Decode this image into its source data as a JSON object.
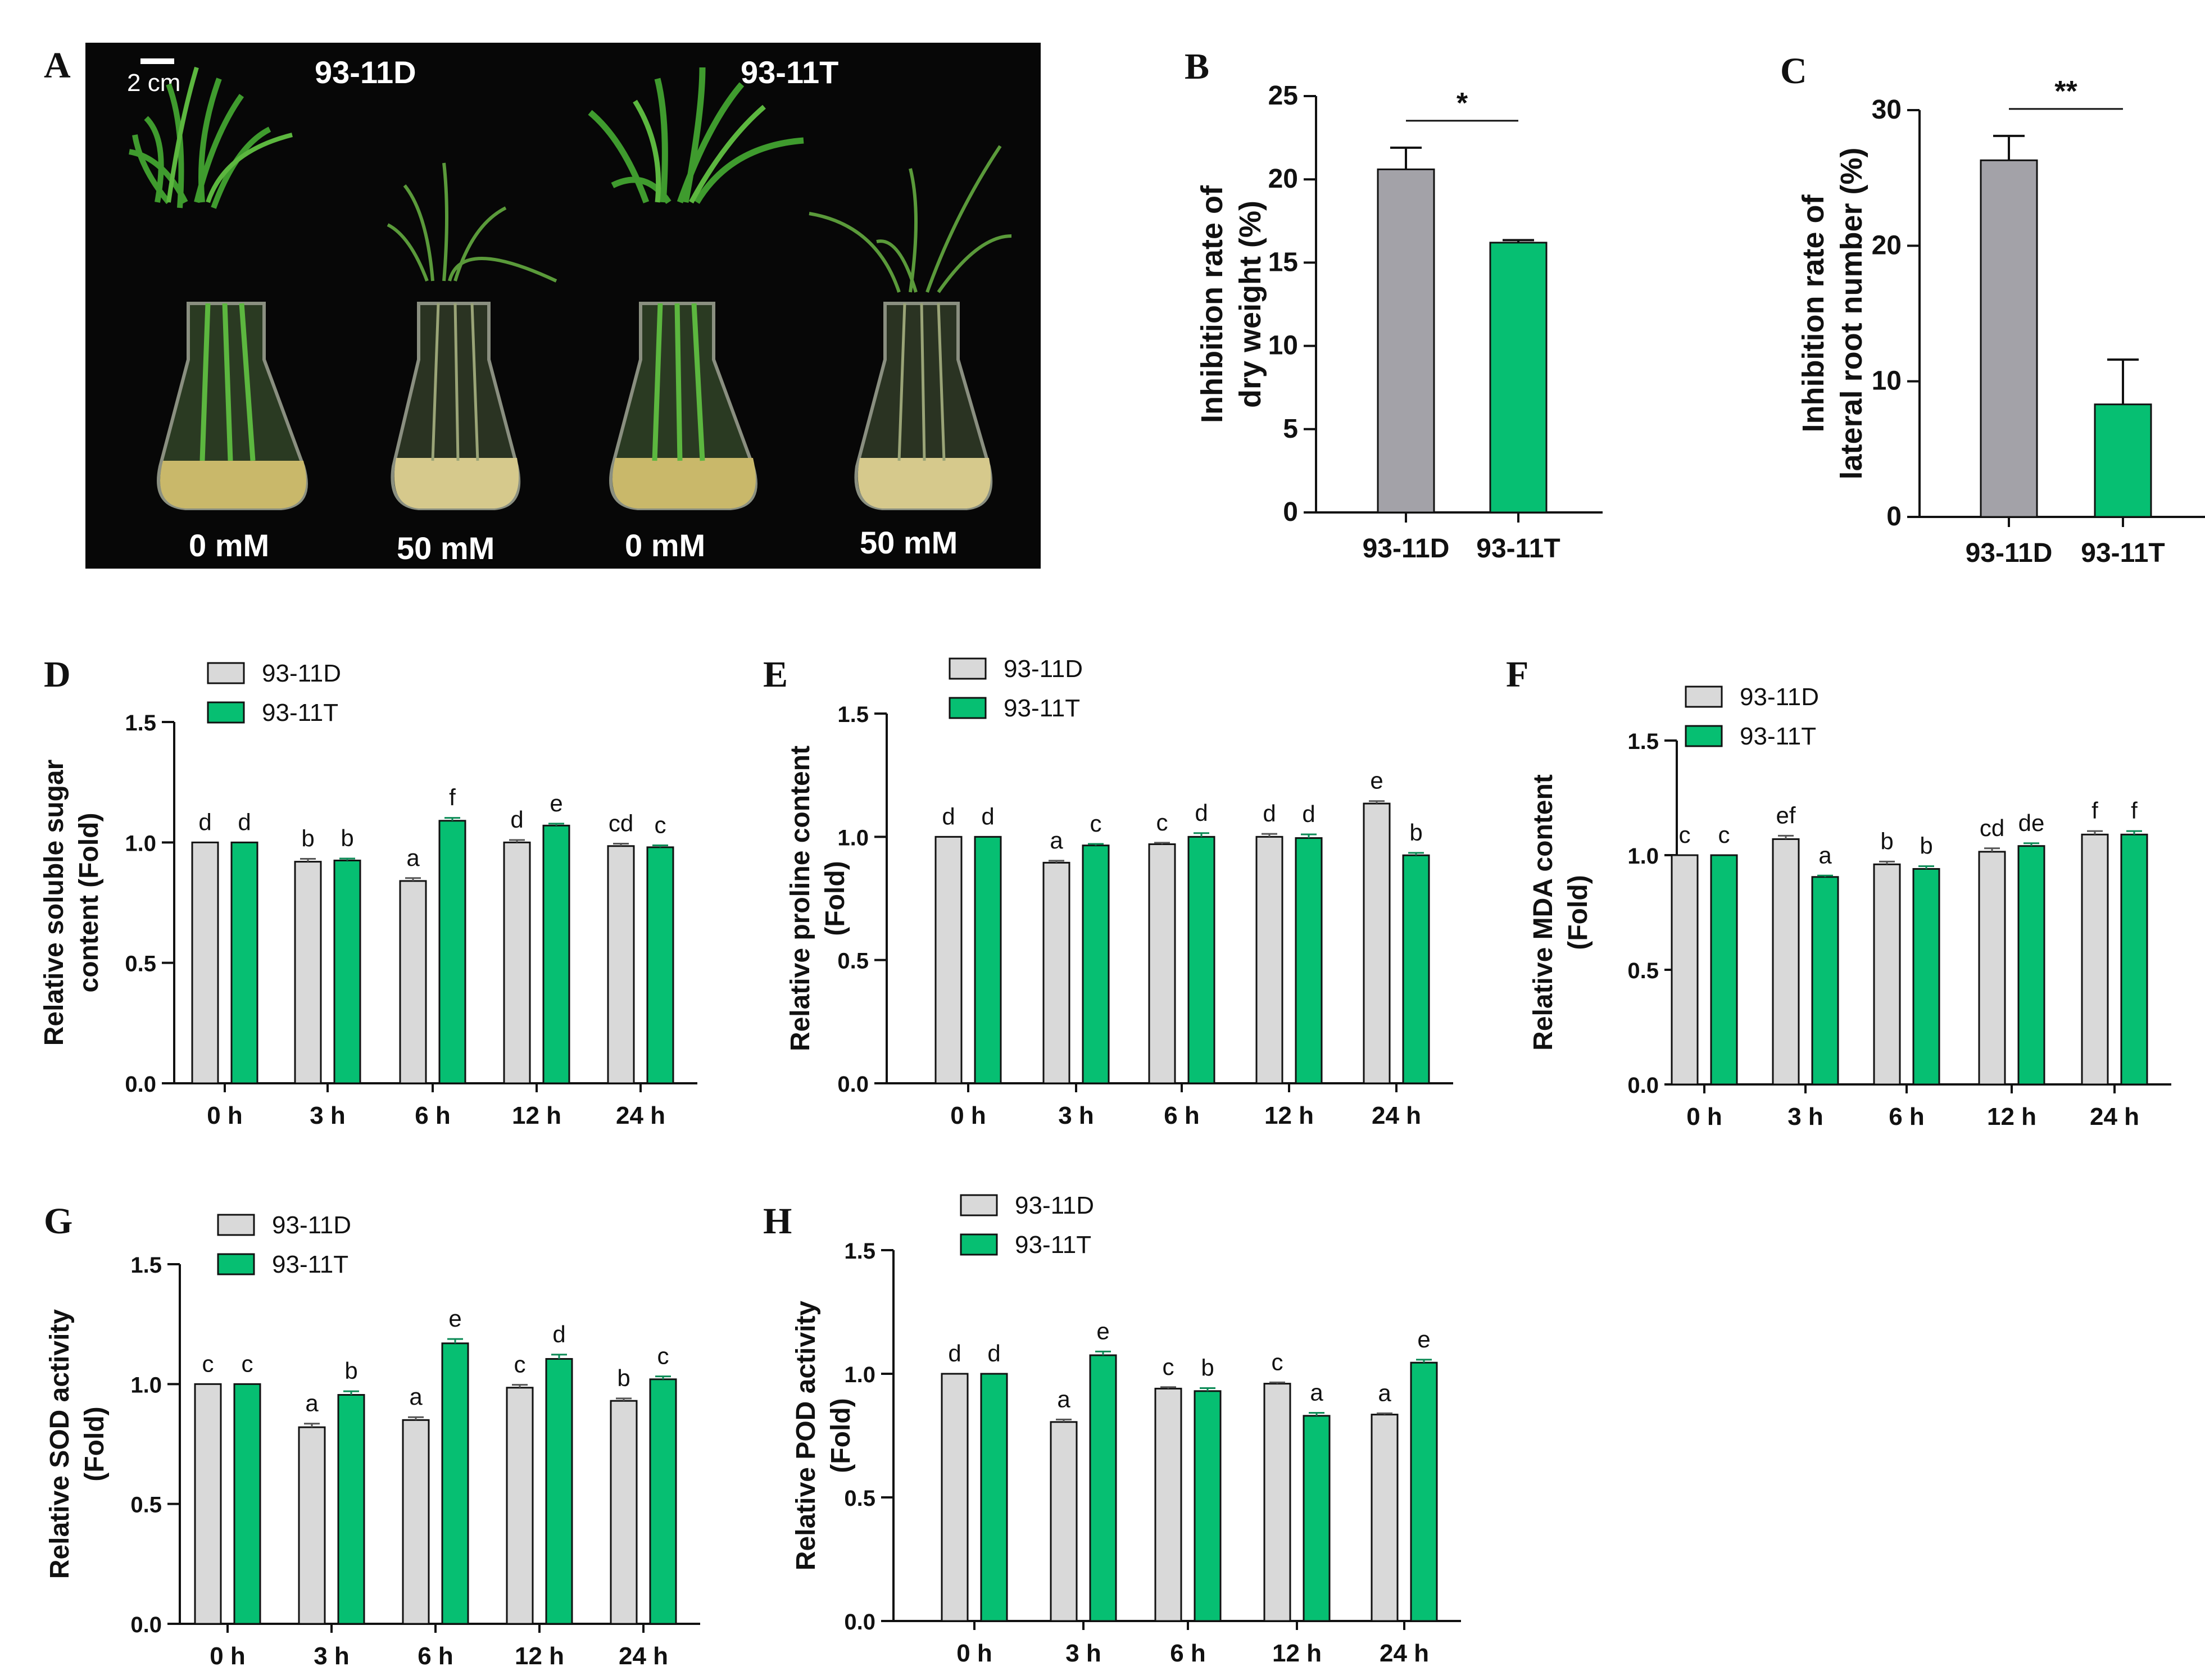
{
  "colors": {
    "gray_bar": "#d9d9d9",
    "gray_bar_dark": "#a3a2a8",
    "green_bar": "#06bf72",
    "axis": "#111111",
    "photo_bg": "#070707"
  },
  "photo": {
    "panel_label": "A",
    "scale_bar": "2 cm",
    "group_left": "93-11D",
    "group_right": "93-11T",
    "conditions": [
      "0 mM",
      "50 mM",
      "0 mM",
      "50 mM"
    ]
  },
  "chart_data": [
    {
      "id": "B",
      "type": "bar",
      "panel_label": "B",
      "ylabel_lines": [
        "Inhibition rate of",
        "dry weight (%)"
      ],
      "categories": [
        "93-11D",
        "93-11T"
      ],
      "values": [
        20.6,
        16.2
      ],
      "errors": [
        1.3,
        0.15
      ],
      "ylim": [
        0,
        25
      ],
      "yticks": [
        0,
        5,
        10,
        15,
        20,
        25
      ],
      "significance": "*"
    },
    {
      "id": "C",
      "type": "bar",
      "panel_label": "C",
      "ylabel_lines": [
        "Inhibition rate of",
        "lateral root number (%)"
      ],
      "categories": [
        "93-11D",
        "93-11T"
      ],
      "values": [
        26.3,
        8.3
      ],
      "errors": [
        1.8,
        3.3
      ],
      "ylim": [
        0,
        30
      ],
      "yticks": [
        0,
        10,
        20,
        30
      ],
      "significance": "**"
    },
    {
      "id": "D",
      "type": "bar",
      "panel_label": "D",
      "ylabel_lines": [
        "Relative soluble sugar",
        "content (Fold)"
      ],
      "categories": [
        "0 h",
        "3 h",
        "6 h",
        "12 h",
        "24 h"
      ],
      "legend": [
        "93-11D",
        "93-11T"
      ],
      "series": [
        {
          "name": "93-11D",
          "values": [
            1.0,
            0.92,
            0.84,
            1.0,
            0.985
          ],
          "errors": [
            0,
            0.012,
            0.012,
            0.01,
            0.01
          ],
          "letters": [
            "d",
            "b",
            "a",
            "d",
            "cd"
          ]
        },
        {
          "name": "93-11T",
          "values": [
            1.0,
            0.925,
            1.09,
            1.07,
            0.98
          ],
          "errors": [
            0,
            0.008,
            0.012,
            0.008,
            0.008
          ],
          "letters": [
            "d",
            "b",
            "f",
            "e",
            "c"
          ]
        }
      ],
      "ylim": [
        0,
        1.5
      ],
      "yticks": [
        "0.0",
        "0.5",
        "1.0",
        "1.5"
      ]
    },
    {
      "id": "E",
      "type": "bar",
      "panel_label": "E",
      "ylabel_lines": [
        "Relative proline content",
        "(Fold)"
      ],
      "categories": [
        "0 h",
        "3 h",
        "6 h",
        "12 h",
        "24 h"
      ],
      "legend": [
        "93-11D",
        "93-11T"
      ],
      "series": [
        {
          "name": "93-11D",
          "values": [
            1.0,
            0.895,
            0.97,
            1.0,
            1.135
          ],
          "errors": [
            0,
            0.008,
            0.006,
            0.012,
            0.01
          ],
          "letters": [
            "d",
            "a",
            "c",
            "d",
            "e"
          ]
        },
        {
          "name": "93-11T",
          "values": [
            1.0,
            0.965,
            1.0,
            0.995,
            0.925
          ],
          "errors": [
            0,
            0.006,
            0.015,
            0.015,
            0.01
          ],
          "letters": [
            "d",
            "c",
            "d",
            "d",
            "b"
          ]
        }
      ],
      "ylim": [
        0,
        1.5
      ],
      "yticks": [
        "0.0",
        "0.5",
        "1.0",
        "1.5"
      ]
    },
    {
      "id": "F",
      "type": "bar",
      "panel_label": "F",
      "ylabel_lines": [
        "Relative MDA content",
        "(Fold)"
      ],
      "categories": [
        "0 h",
        "3 h",
        "6 h",
        "12 h",
        "24 h"
      ],
      "legend": [
        "93-11D",
        "93-11T"
      ],
      "series": [
        {
          "name": "93-11D",
          "values": [
            1.0,
            1.07,
            0.96,
            1.015,
            1.09
          ],
          "errors": [
            0,
            0.015,
            0.012,
            0.015,
            0.015
          ],
          "letters": [
            "c",
            "ef",
            "b",
            "cd",
            "f"
          ]
        },
        {
          "name": "93-11T",
          "values": [
            1.0,
            0.905,
            0.94,
            1.04,
            1.09
          ],
          "errors": [
            0,
            0.006,
            0.012,
            0.012,
            0.015
          ],
          "letters": [
            "c",
            "a",
            "b",
            "de",
            "f"
          ]
        }
      ],
      "ylim": [
        0,
        1.5
      ],
      "yticks": [
        "0.0",
        "0.5",
        "1.0",
        "1.5"
      ]
    },
    {
      "id": "G",
      "type": "bar",
      "panel_label": "G",
      "ylabel_lines": [
        "Relative SOD activity",
        "(Fold)"
      ],
      "categories": [
        "0 h",
        "3 h",
        "6 h",
        "12 h",
        "24 h"
      ],
      "legend": [
        "93-11D",
        "93-11T"
      ],
      "series": [
        {
          "name": "93-11D",
          "values": [
            1.0,
            0.82,
            0.85,
            0.985,
            0.93
          ],
          "errors": [
            0,
            0.015,
            0.012,
            0.012,
            0.01
          ],
          "letters": [
            "c",
            "a",
            "a",
            "c",
            "b"
          ]
        },
        {
          "name": "93-11T",
          "values": [
            1.0,
            0.955,
            1.17,
            1.105,
            1.02
          ],
          "errors": [
            0,
            0.015,
            0.018,
            0.018,
            0.012
          ],
          "letters": [
            "c",
            "b",
            "e",
            "d",
            "c"
          ]
        }
      ],
      "ylim": [
        0,
        1.5
      ],
      "yticks": [
        "0.0",
        "0.5",
        "1.0",
        "1.5"
      ]
    },
    {
      "id": "H",
      "type": "bar",
      "panel_label": "H",
      "ylabel_lines": [
        "Relative POD activity",
        "(Fold)"
      ],
      "categories": [
        "0 h",
        "3 h",
        "6 h",
        "12 h",
        "24 h"
      ],
      "legend": [
        "93-11D",
        "93-11T"
      ],
      "series": [
        {
          "name": "93-11D",
          "values": [
            1.0,
            0.805,
            0.94,
            0.96,
            0.835
          ],
          "errors": [
            0,
            0.01,
            0.006,
            0.005,
            0.005
          ],
          "letters": [
            "d",
            "a",
            "c",
            "c",
            "a"
          ]
        },
        {
          "name": "93-11T",
          "values": [
            1.0,
            1.075,
            0.93,
            0.83,
            1.045
          ],
          "errors": [
            0,
            0.015,
            0.012,
            0.012,
            0.012
          ],
          "letters": [
            "d",
            "e",
            "b",
            "a",
            "e"
          ]
        }
      ],
      "ylim": [
        0,
        1.5
      ],
      "yticks": [
        "0.0",
        "0.5",
        "1.0",
        "1.5"
      ]
    }
  ]
}
